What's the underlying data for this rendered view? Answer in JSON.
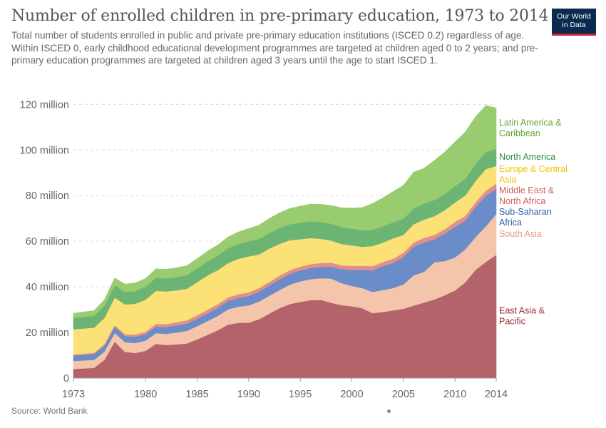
{
  "header": {
    "title": "Number of enrolled children in pre-primary education, 1973 to 2014",
    "subtitle": "Total number of students enrolled in public and private pre-primary education institutions (ISCED 0.2) regardless of age. Within ISCED 0, early childhood educational development programmes are targeted at children aged 0 to 2 years; and pre-primary education programmes are targeted at children aged 3 years until the age to start ISCED 1."
  },
  "logo": {
    "line1": "Our World",
    "line2": "in Data",
    "bg_color": "#0a2a4f",
    "accent_color": "#c1272d"
  },
  "footer": {
    "source": "Source: World Bank"
  },
  "chart_data": {
    "type": "area",
    "stacked": true,
    "title": "Number of enrolled children in pre-primary education, 1973 to 2014",
    "xlabel": "",
    "ylabel": "",
    "x": [
      1973,
      1975,
      1976,
      1977,
      1978,
      1979,
      1980,
      1981,
      1982,
      1983,
      1984,
      1985,
      1986,
      1987,
      1988,
      1989,
      1990,
      1991,
      1992,
      1993,
      1994,
      1995,
      1996,
      1997,
      1998,
      1999,
      2000,
      2001,
      2002,
      2003,
      2004,
      2005,
      2006,
      2007,
      2008,
      2009,
      2010,
      2011,
      2012,
      2013,
      2014
    ],
    "xlim": [
      1973,
      2014
    ],
    "ylim": [
      0,
      132000000
    ],
    "x_ticks": [
      {
        "value": 1973,
        "label": "1973"
      },
      {
        "value": 1980,
        "label": "1980"
      },
      {
        "value": 1985,
        "label": "1985"
      },
      {
        "value": 1990,
        "label": "1990"
      },
      {
        "value": 1995,
        "label": "1995"
      },
      {
        "value": 2000,
        "label": "2000"
      },
      {
        "value": 2005,
        "label": "2005"
      },
      {
        "value": 2010,
        "label": "2010"
      },
      {
        "value": 2014,
        "label": "2014"
      }
    ],
    "y_ticks": [
      {
        "value": 0,
        "label": "0"
      },
      {
        "value": 20000000,
        "label": "20 million"
      },
      {
        "value": 40000000,
        "label": "40 million"
      },
      {
        "value": 60000000,
        "label": "60 million"
      },
      {
        "value": 80000000,
        "label": "80 million"
      },
      {
        "value": 100000000,
        "label": "100 million"
      },
      {
        "value": 120000000,
        "label": "120 million"
      }
    ],
    "grid": "horizontal dashed",
    "legend": "right, labels at series ends",
    "series": [
      {
        "name": "East Asia & Pacific",
        "label_lines": [
          "East Asia &",
          "Pacific"
        ],
        "color": "#b5636b",
        "label_color": "#9b2a35",
        "values": [
          4000000,
          4500000,
          8000000,
          16000000,
          11500000,
          11000000,
          12000000,
          15000000,
          14500000,
          14800000,
          15200000,
          17000000,
          19000000,
          21000000,
          23500000,
          24200000,
          24300000,
          25800000,
          28300000,
          30700000,
          32500000,
          33400000,
          34200000,
          34300000,
          33000000,
          32000000,
          31500000,
          30700000,
          28500000,
          29000000,
          29700000,
          30400000,
          31800000,
          33100000,
          34500000,
          36300000,
          38400000,
          42000000,
          47500000,
          51000000,
          54000000
        ]
      },
      {
        "name": "South Asia",
        "label_lines": [
          "South Asia"
        ],
        "color": "#f4c5aa",
        "label_color": "#e29c7c",
        "values": [
          3500000,
          3500000,
          3600000,
          3800000,
          4300000,
          4400000,
          4500000,
          4700000,
          4900000,
          5200000,
          5500000,
          5800000,
          6000000,
          6300000,
          6700000,
          7100000,
          7600000,
          7800000,
          7800000,
          8000000,
          8500000,
          9000000,
          9200000,
          9500000,
          10700000,
          9700000,
          8900000,
          8800000,
          9300000,
          9600000,
          9800000,
          10700000,
          13300000,
          13500000,
          16300000,
          15000000,
          14500000,
          14500000,
          14400000,
          15600000,
          18000000
        ]
      },
      {
        "name": "Sub-Saharan Africa",
        "label_lines": [
          "Sub-Saharan",
          "Africa"
        ],
        "color": "#6a8cc8",
        "label_color": "#2d5fa8",
        "values": [
          2400000,
          2500000,
          2600000,
          2700000,
          2600000,
          2700000,
          2800000,
          2900000,
          3000000,
          3100000,
          3200000,
          3300000,
          3400000,
          3500000,
          3700000,
          3900000,
          4100000,
          4300000,
          4500000,
          4600000,
          4700000,
          4800000,
          4900000,
          5000000,
          5100000,
          6000000,
          7000000,
          8000000,
          9500000,
          10500000,
          11000000,
          12000000,
          12500000,
          12900000,
          10000000,
          12000000,
          13500000,
          12500000,
          13100000,
          13400000,
          11000000
        ]
      },
      {
        "name": "Middle East & North Africa",
        "label_lines": [
          "Middle East &",
          "North Africa"
        ],
        "color": "#e08f8b",
        "label_color": "#d0605a",
        "values": [
          500000,
          600000,
          700000,
          800000,
          900000,
          1000000,
          1100000,
          1200000,
          1300000,
          1400000,
          1500000,
          1500000,
          1600000,
          1600000,
          1600000,
          1600000,
          1600000,
          1600000,
          1600000,
          1700000,
          1700000,
          1700000,
          1700000,
          1700000,
          1800000,
          1800000,
          1800000,
          1800000,
          1800000,
          1800000,
          1800000,
          1900000,
          1900000,
          2000000,
          2000000,
          2000000,
          2100000,
          2100000,
          2200000,
          2200000,
          2300000
        ]
      },
      {
        "name": "Europe & Central Asia",
        "label_lines": [
          "Europe & Central",
          "Asia"
        ],
        "color": "#fbe176",
        "label_color": "#f0c500",
        "values": [
          11000000,
          11000000,
          11500000,
          12000000,
          13000000,
          13500000,
          14000000,
          14500000,
          14300000,
          14000000,
          13800000,
          14500000,
          15000000,
          15000000,
          15000000,
          15500000,
          15800000,
          14700000,
          14600000,
          13900000,
          13100000,
          12000000,
          11400000,
          10600000,
          9700000,
          9300000,
          9000000,
          8300000,
          8800000,
          8500000,
          9000000,
          7800000,
          8000000,
          8000000,
          8200000,
          8300000,
          8500000,
          9000000,
          9300000,
          9500000,
          7700000
        ]
      },
      {
        "name": "North America",
        "label_lines": [
          "North America"
        ],
        "color": "#6bb473",
        "label_color": "#2e8b46",
        "values": [
          5000000,
          5200000,
          5300000,
          5400000,
          5500000,
          5500000,
          5600000,
          5700000,
          5700000,
          5800000,
          5900000,
          6000000,
          6100000,
          6300000,
          6400000,
          6500000,
          6600000,
          6800000,
          6800000,
          6900000,
          7000000,
          7200000,
          7300000,
          7300000,
          7400000,
          7400000,
          7300000,
          7200000,
          7100000,
          7100000,
          7000000,
          7000000,
          7000000,
          7000000,
          7100000,
          7100000,
          7200000,
          7300000,
          7400000,
          7400000,
          7500000
        ]
      },
      {
        "name": "Latin America & Caribbean",
        "label_lines": [
          "Latin America &",
          "Caribbean"
        ],
        "color": "#99cb6f",
        "label_color": "#5fa52e",
        "values": [
          2000000,
          2300000,
          2600000,
          3200000,
          3400000,
          3600000,
          3700000,
          3900000,
          4000000,
          4100000,
          4200000,
          4300000,
          4500000,
          4700000,
          5000000,
          5300000,
          5600000,
          6000000,
          6400000,
          6700000,
          6900000,
          7300000,
          7600000,
          7800000,
          8000000,
          8500000,
          9000000,
          10000000,
          11500000,
          12500000,
          13500000,
          14700000,
          15800000,
          15500000,
          17300000,
          18300000,
          19300000,
          20500000,
          20700000,
          20400000,
          18000000
        ]
      }
    ]
  }
}
